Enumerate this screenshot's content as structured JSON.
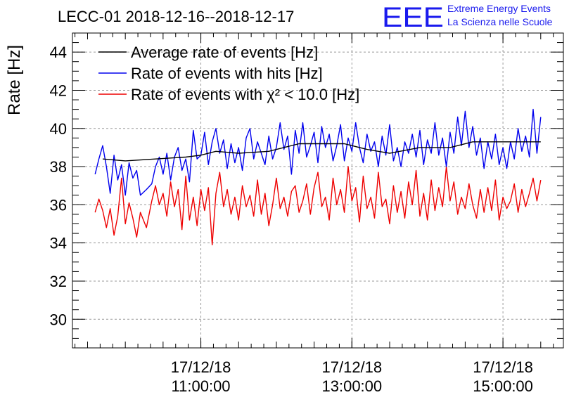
{
  "chart_data": {
    "type": "line",
    "title": "LECC-01 2018-12-16--2018-12-17",
    "ylabel": "Rate [Hz]",
    "xlabel": "",
    "ylim": [
      28.5,
      45
    ],
    "xlim_hours": [
      9.3,
      15.8
    ],
    "grid": true,
    "legend_position": "top-left",
    "y_ticks": [
      30,
      32,
      34,
      36,
      38,
      40,
      42,
      44
    ],
    "x_ticks": [
      {
        "hour": 11,
        "date": "17/12/18",
        "time": "11:00:00"
      },
      {
        "hour": 13,
        "date": "17/12/18",
        "time": "13:00:00"
      },
      {
        "hour": 15,
        "date": "17/12/18",
        "time": "15:00:00"
      }
    ],
    "logo": {
      "mark": "EEE",
      "line1": "Extreme Energy Events",
      "line2": "La Scienza nelle Scuole"
    },
    "series": [
      {
        "name": "Average rate of events [Hz]",
        "color": "#000000",
        "x": [
          9.7,
          10.0,
          10.4,
          10.8,
          11.0,
          11.2,
          11.5,
          11.9,
          12.3,
          12.6,
          12.9,
          13.0,
          13.2,
          13.5,
          13.9,
          14.3,
          14.6,
          14.8,
          15.0,
          15.3,
          15.5
        ],
        "y": [
          38.4,
          38.3,
          38.4,
          38.5,
          38.6,
          38.8,
          38.7,
          38.8,
          39.2,
          39.2,
          39.2,
          39.1,
          38.9,
          38.7,
          39.0,
          39.0,
          39.3,
          39.3,
          39.3,
          39.3,
          39.3
        ]
      },
      {
        "name": "Rate of events with hits [Hz]",
        "color": "#0000ee",
        "x": [
          9.6,
          9.65,
          9.7,
          9.75,
          9.8,
          9.85,
          9.9,
          9.95,
          10.0,
          10.05,
          10.1,
          10.15,
          10.2,
          10.28,
          10.35,
          10.4,
          10.45,
          10.5,
          10.55,
          10.6,
          10.65,
          10.7,
          10.75,
          10.8,
          10.85,
          10.9,
          10.95,
          11.0,
          11.05,
          11.1,
          11.15,
          11.2,
          11.25,
          11.3,
          11.35,
          11.4,
          11.45,
          11.5,
          11.55,
          11.6,
          11.65,
          11.7,
          11.75,
          11.8,
          11.85,
          11.9,
          11.95,
          12.0,
          12.05,
          12.1,
          12.15,
          12.2,
          12.25,
          12.3,
          12.35,
          12.4,
          12.45,
          12.5,
          12.55,
          12.6,
          12.65,
          12.7,
          12.75,
          12.8,
          12.85,
          12.9,
          12.95,
          13.0,
          13.05,
          13.1,
          13.15,
          13.2,
          13.25,
          13.3,
          13.35,
          13.4,
          13.45,
          13.5,
          13.55,
          13.6,
          13.65,
          13.7,
          13.75,
          13.8,
          13.85,
          13.9,
          13.95,
          14.0,
          14.05,
          14.1,
          14.15,
          14.2,
          14.25,
          14.3,
          14.35,
          14.4,
          14.45,
          14.5,
          14.55,
          14.6,
          14.65,
          14.7,
          14.75,
          14.8,
          14.85,
          14.9,
          14.95,
          15.0,
          15.05,
          15.1,
          15.15,
          15.2,
          15.25,
          15.3,
          15.35,
          15.4,
          15.45,
          15.5
        ],
        "y": [
          37.6,
          38.4,
          39.1,
          38.0,
          36.6,
          38.6,
          37.3,
          38.1,
          36.5,
          38.2,
          37.4,
          37.8,
          36.5,
          36.8,
          37.1,
          38.0,
          38.5,
          37.6,
          38.7,
          37.3,
          38.5,
          39.0,
          37.8,
          38.4,
          37.2,
          39.9,
          38.4,
          38.6,
          39.8,
          38.1,
          39.3,
          40.0,
          38.7,
          39.4,
          37.9,
          39.2,
          38.2,
          39.0,
          37.8,
          39.5,
          40.0,
          38.4,
          39.3,
          38.7,
          38.1,
          39.6,
          38.4,
          39.0,
          40.3,
          38.9,
          39.6,
          37.6,
          39.9,
          38.7,
          40.3,
          38.5,
          39.1,
          39.8,
          38.2,
          40.1,
          39.0,
          39.7,
          38.3,
          39.1,
          40.2,
          38.3,
          39.5,
          38.8,
          40.3,
          39.0,
          38.2,
          39.7,
          38.8,
          39.3,
          38.0,
          39.6,
          38.6,
          40.2,
          38.3,
          39.0,
          38.0,
          39.3,
          38.7,
          39.7,
          38.5,
          39.9,
          38.1,
          39.4,
          38.7,
          40.3,
          38.6,
          39.5,
          38.0,
          39.8,
          38.7,
          40.6,
          39.1,
          40.9,
          39.0,
          40.1,
          38.6,
          39.5,
          37.9,
          39.3,
          38.4,
          39.7,
          38.1,
          39.0,
          37.9,
          39.3,
          38.4,
          40.0,
          38.8,
          39.6,
          38.5,
          41.0,
          38.7,
          40.6
        ]
      },
      {
        "name": "Rate of events with χ² < 10.0 [Hz]",
        "color": "#ee0000",
        "x": [
          9.6,
          9.65,
          9.7,
          9.75,
          9.8,
          9.85,
          9.9,
          9.95,
          10.0,
          10.05,
          10.1,
          10.15,
          10.2,
          10.28,
          10.35,
          10.4,
          10.45,
          10.5,
          10.55,
          10.6,
          10.65,
          10.7,
          10.75,
          10.8,
          10.85,
          10.9,
          10.95,
          11.0,
          11.05,
          11.1,
          11.15,
          11.2,
          11.25,
          11.3,
          11.35,
          11.4,
          11.45,
          11.5,
          11.55,
          11.6,
          11.65,
          11.7,
          11.75,
          11.8,
          11.85,
          11.9,
          11.95,
          12.0,
          12.05,
          12.1,
          12.15,
          12.2,
          12.25,
          12.3,
          12.35,
          12.4,
          12.45,
          12.5,
          12.55,
          12.6,
          12.65,
          12.7,
          12.75,
          12.8,
          12.85,
          12.9,
          12.95,
          13.0,
          13.05,
          13.1,
          13.15,
          13.2,
          13.25,
          13.3,
          13.35,
          13.4,
          13.45,
          13.5,
          13.55,
          13.6,
          13.65,
          13.7,
          13.75,
          13.8,
          13.85,
          13.9,
          13.95,
          14.0,
          14.05,
          14.1,
          14.15,
          14.2,
          14.25,
          14.3,
          14.35,
          14.4,
          14.45,
          14.5,
          14.55,
          14.6,
          14.65,
          14.7,
          14.75,
          14.8,
          14.85,
          14.9,
          14.95,
          15.0,
          15.05,
          15.1,
          15.15,
          15.2,
          15.25,
          15.3,
          15.35,
          15.4,
          15.45,
          15.5
        ],
        "y": [
          35.6,
          36.3,
          35.7,
          34.8,
          35.8,
          34.4,
          35.4,
          37.4,
          35.0,
          36.1,
          35.3,
          34.3,
          35.6,
          34.8,
          36.2,
          37.0,
          36.0,
          36.6,
          35.4,
          37.2,
          35.9,
          36.8,
          34.7,
          37.5,
          35.2,
          36.4,
          34.9,
          36.8,
          35.7,
          36.9,
          33.9,
          36.6,
          37.7,
          35.9,
          36.8,
          35.5,
          36.4,
          35.2,
          37.0,
          35.9,
          36.5,
          35.4,
          37.3,
          35.5,
          36.6,
          34.9,
          36.0,
          37.4,
          35.8,
          36.4,
          35.4,
          36.7,
          37.0,
          35.6,
          36.2,
          37.1,
          35.5,
          36.9,
          37.7,
          35.9,
          36.4,
          35.2,
          37.4,
          36.0,
          36.8,
          35.6,
          38.0,
          36.2,
          36.9,
          35.1,
          37.5,
          35.8,
          36.4,
          35.3,
          37.7,
          35.9,
          36.3,
          35.0,
          37.0,
          35.6,
          36.7,
          35.3,
          37.2,
          36.0,
          37.8,
          35.4,
          36.6,
          35.2,
          37.3,
          35.7,
          36.9,
          35.9,
          38.0,
          36.2,
          37.2,
          35.5,
          36.4,
          35.8,
          37.1,
          36.0,
          35.3,
          36.8,
          35.6,
          36.9,
          35.7,
          37.3,
          35.2,
          36.4,
          35.8,
          36.2,
          37.1,
          35.6,
          36.8,
          35.9,
          36.6,
          37.4,
          36.2,
          37.3
        ]
      }
    ]
  }
}
